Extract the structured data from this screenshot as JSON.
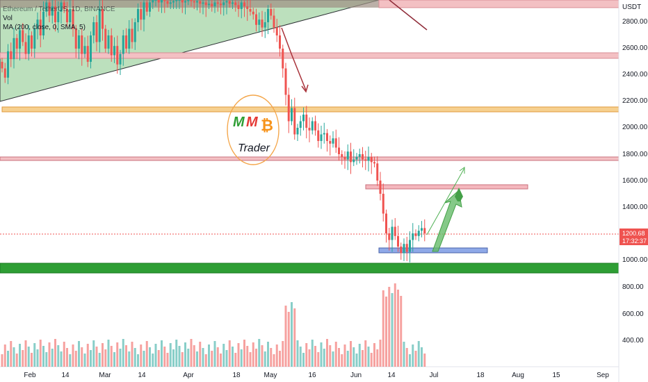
{
  "header": {
    "symbol_line": "Ethereum / TetherUS, 1D, BINANCE",
    "ma_line": "MA (200, close, 0, SMA, 5)",
    "vol_label": "Vol"
  },
  "price_axis": {
    "currency": "USDT",
    "ticks": [
      "2800.00",
      "2600.00",
      "2400.00",
      "2200.00",
      "2000.00",
      "1800.00",
      "1600.00",
      "1400.00",
      "1200.00",
      "1000.00",
      "800.00",
      "600.00",
      "400.00"
    ]
  },
  "price_box": {
    "price": "1200.68",
    "countdown": "17:32:37"
  },
  "time_axis": {
    "ticks": [
      "Feb",
      "14",
      "Mar",
      "14",
      "Apr",
      "18",
      "May",
      "16",
      "Jun",
      "14",
      "Jul",
      "18",
      "Aug",
      "15",
      "Sep"
    ]
  },
  "logo": {
    "letters": "M M",
    "coin": "₿",
    "word": "Trader"
  },
  "chart_data": {
    "type": "candlestick",
    "x_ticks": [
      "Feb",
      "14",
      "Mar",
      "14",
      "Apr",
      "18",
      "May",
      "16",
      "Jun",
      "14",
      "Jul",
      "18",
      "Aug",
      "15",
      "Sep"
    ],
    "ylim": [
      800,
      2950
    ],
    "price_ticks": [
      2800,
      2600,
      2400,
      2200,
      2000,
      1800,
      1600,
      1400,
      1200,
      1000,
      800,
      600,
      400
    ],
    "current_price": 1200.68,
    "horizontal_levels": [
      {
        "kind": "red-band",
        "from": 2900,
        "to": 2960
      },
      {
        "kind": "red-band",
        "from": 2525,
        "to": 2560
      },
      {
        "kind": "orange-band",
        "from": 2110,
        "to": 2140
      },
      {
        "kind": "red-band",
        "from": 1750,
        "to": 1775
      },
      {
        "kind": "green-band",
        "from": 910,
        "to": 985
      }
    ],
    "zones": [
      {
        "kind": "resistance",
        "from": 1545,
        "to": 1575
      },
      {
        "kind": "support",
        "from": 1050,
        "to": 1080
      }
    ],
    "colors": {
      "up": "#26a69a",
      "down": "#ef5350",
      "support_zone": "#5b7fd1",
      "green_band": "#2e9e34",
      "orange_band": "#f0a040"
    }
  }
}
